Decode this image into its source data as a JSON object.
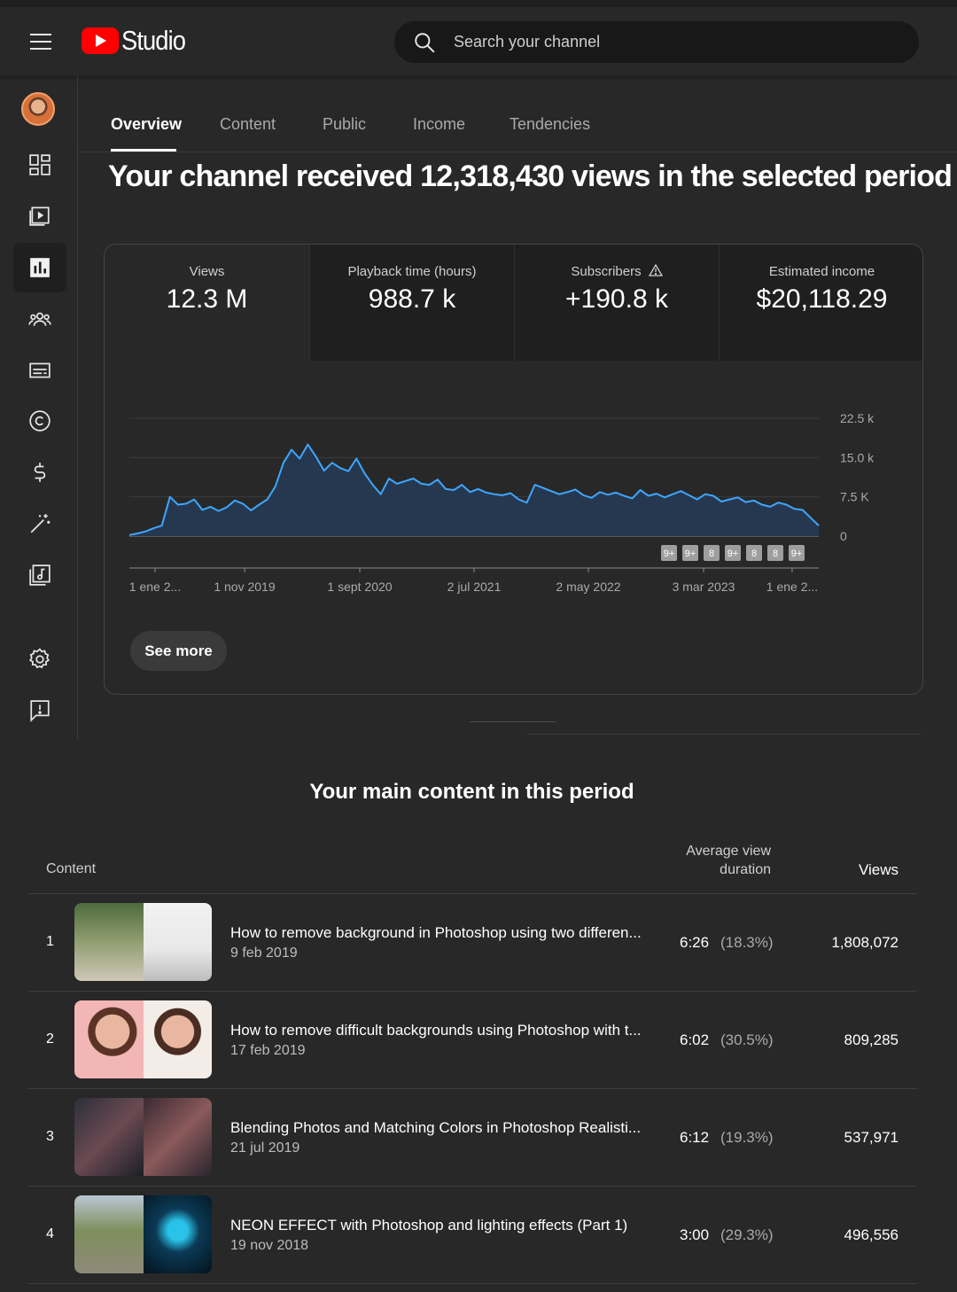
{
  "app": {
    "logo_text": "Studio"
  },
  "search": {
    "placeholder": "Search your channel"
  },
  "tabs": [
    {
      "label": "Overview",
      "active": true
    },
    {
      "label": "Content"
    },
    {
      "label": "Public"
    },
    {
      "label": "Income"
    },
    {
      "label": "Tendencies"
    }
  ],
  "sidebar": {
    "items": [
      "dashboard-icon",
      "content-icon",
      "analytics-icon",
      "community-icon",
      "subtitles-icon",
      "copyright-icon",
      "earn-icon",
      "customization-icon",
      "audio-library-icon",
      "settings-icon",
      "feedback-icon"
    ]
  },
  "headline": "Your channel received 12,318,430 views in the selected period",
  "metrics": [
    {
      "label": "Views",
      "value": "12.3 M"
    },
    {
      "label": "Playback time (hours)",
      "value": "988.7 k"
    },
    {
      "label": "Subscribers",
      "value": "+190.8 k"
    },
    {
      "label": "Estimated income",
      "value": "$20,118.29"
    }
  ],
  "see_more": "See more",
  "chart_data": {
    "type": "area",
    "series": [
      {
        "values": [
          200,
          500,
          900,
          1500,
          2000,
          7500,
          6000,
          6200,
          7000,
          5000,
          5600,
          4800,
          5500,
          6800,
          6200,
          4900,
          6000,
          7000,
          9500,
          14000,
          16500,
          14800,
          17500,
          15200,
          12500,
          14000,
          13000,
          12400,
          14800,
          12000,
          9800,
          8000,
          11000,
          10000,
          10500,
          11000,
          10000,
          9800,
          10800,
          9000,
          8800,
          9800,
          8400,
          9000,
          8300,
          8000,
          7800,
          8200,
          7000,
          6400,
          9800,
          9200,
          8600,
          8000,
          8400,
          8900,
          7800,
          7300,
          8400,
          7900,
          8300,
          7700,
          7200,
          8800,
          7700,
          8100,
          7400,
          8000,
          8600,
          7800,
          7000,
          8000,
          7700,
          6600,
          7000,
          7400,
          6500,
          6800,
          6000,
          5600,
          6400,
          6000,
          5200,
          5000,
          3500,
          2000
        ]
      }
    ],
    "x_tick_labels": [
      "1 ene 2...",
      "1 nov 2019",
      "1 sept 2020",
      "2 jul 2021",
      "2 may 2022",
      "3 mar 2023",
      "1 ene 2..."
    ],
    "y_tick_labels": [
      "22.5 k",
      "15.0 k",
      "7.5 K",
      "0"
    ],
    "ylim": [
      0,
      22500
    ],
    "markers": [
      "9+",
      "9+",
      "8",
      "9+",
      "8",
      "8",
      "9+"
    ],
    "color": "#3ea6ff",
    "fill": "#263850"
  },
  "table": {
    "title": "Your main content in this period",
    "headers": {
      "content": "Content",
      "avd_line1": "Average view",
      "avd_line2": "duration",
      "views": "Views"
    },
    "rows": [
      {
        "rank": "1",
        "title": "How to remove background in Photoshop using two differen...",
        "date": "9 feb 2019",
        "avd": "6:26",
        "pct": "(18.3%)",
        "views": "1,808,072"
      },
      {
        "rank": "2",
        "title": "How to remove difficult backgrounds using Photoshop with t...",
        "date": "17 feb 2019",
        "avd": "6:02",
        "pct": "(30.5%)",
        "views": "809,285"
      },
      {
        "rank": "3",
        "title": "Blending Photos and Matching Colors in Photoshop Realisti...",
        "date": "21 jul 2019",
        "avd": "6:12",
        "pct": "(19.3%)",
        "views": "537,971"
      },
      {
        "rank": "4",
        "title": "NEON EFFECT with Photoshop and lighting effects (Part 1)",
        "date": "19 nov 2018",
        "avd": "3:00",
        "pct": "(29.3%)",
        "views": "496,556"
      }
    ]
  }
}
